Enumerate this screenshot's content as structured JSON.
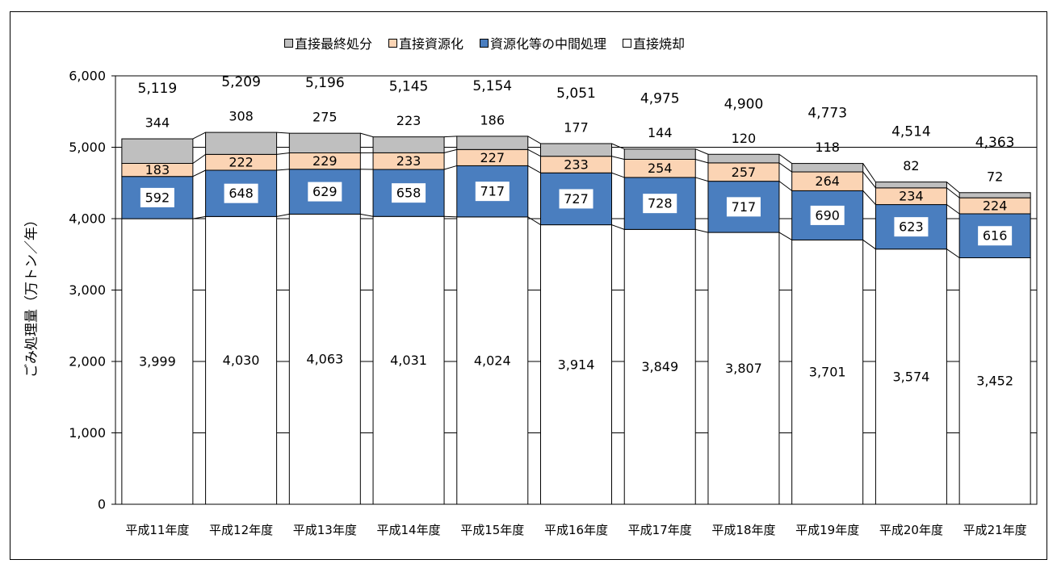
{
  "chart_data": {
    "type": "bar",
    "stacked": true,
    "ylabel": "ごみ処理量（万トン／年）",
    "xlabel": "",
    "ylim": [
      0,
      6000
    ],
    "yticks": [
      0,
      1000,
      2000,
      3000,
      4000,
      5000,
      6000
    ],
    "ytick_labels": [
      "0",
      "1,000",
      "2,000",
      "3,000",
      "4,000",
      "5,000",
      "6,000"
    ],
    "grid": "horizontal",
    "legend_position": "top",
    "categories": [
      "平成11年度",
      "平成12年度",
      "平成13年度",
      "平成14年度",
      "平成15年度",
      "平成16年度",
      "平成17年度",
      "平成18年度",
      "平成19年度",
      "平成20年度",
      "平成21年度"
    ],
    "series": [
      {
        "name": "直接焼却",
        "color": "#ffffff",
        "values": [
          3999,
          4030,
          4063,
          4031,
          4024,
          3914,
          3849,
          3807,
          3701,
          3574,
          3452
        ],
        "labels": [
          "3,999",
          "4,030",
          "4,063",
          "4,031",
          "4,024",
          "3,914",
          "3,849",
          "3,807",
          "3,701",
          "3,574",
          "3,452"
        ]
      },
      {
        "name": "資源化等の中間処理",
        "color": "#4a7ebf",
        "values": [
          592,
          648,
          629,
          658,
          717,
          727,
          728,
          717,
          690,
          623,
          616
        ],
        "labels": [
          "592",
          "648",
          "629",
          "658",
          "717",
          "727",
          "728",
          "717",
          "690",
          "623",
          "616"
        ]
      },
      {
        "name": "直接資源化",
        "color": "#fbd4b4",
        "values": [
          183,
          222,
          229,
          233,
          227,
          233,
          254,
          257,
          264,
          234,
          224
        ],
        "labels": [
          "183",
          "222",
          "229",
          "233",
          "227",
          "233",
          "254",
          "257",
          "264",
          "234",
          "224"
        ]
      },
      {
        "name": "直接最終処分",
        "color": "#bfbfbf",
        "values": [
          344,
          308,
          275,
          223,
          186,
          177,
          144,
          120,
          118,
          82,
          72
        ],
        "labels": [
          "344",
          "308",
          "275",
          "223",
          "186",
          "177",
          "144",
          "120",
          "118",
          "82",
          "72"
        ]
      }
    ],
    "totals": [
      5119,
      5209,
      5196,
      5145,
      5154,
      5051,
      4975,
      4900,
      4773,
      4514,
      4363
    ],
    "total_labels": [
      "5,119",
      "5,209",
      "5,196",
      "5,145",
      "5,154",
      "5,051",
      "4,975",
      "4,900",
      "4,773",
      "4,514",
      "4,363"
    ],
    "legend": [
      {
        "label": "直接最終処分",
        "color": "#bfbfbf"
      },
      {
        "label": "直接資源化",
        "color": "#fbd4b4"
      },
      {
        "label": "資源化等の中間処理",
        "color": "#4a7ebf"
      },
      {
        "label": "直接焼却",
        "color": "#ffffff"
      }
    ]
  }
}
